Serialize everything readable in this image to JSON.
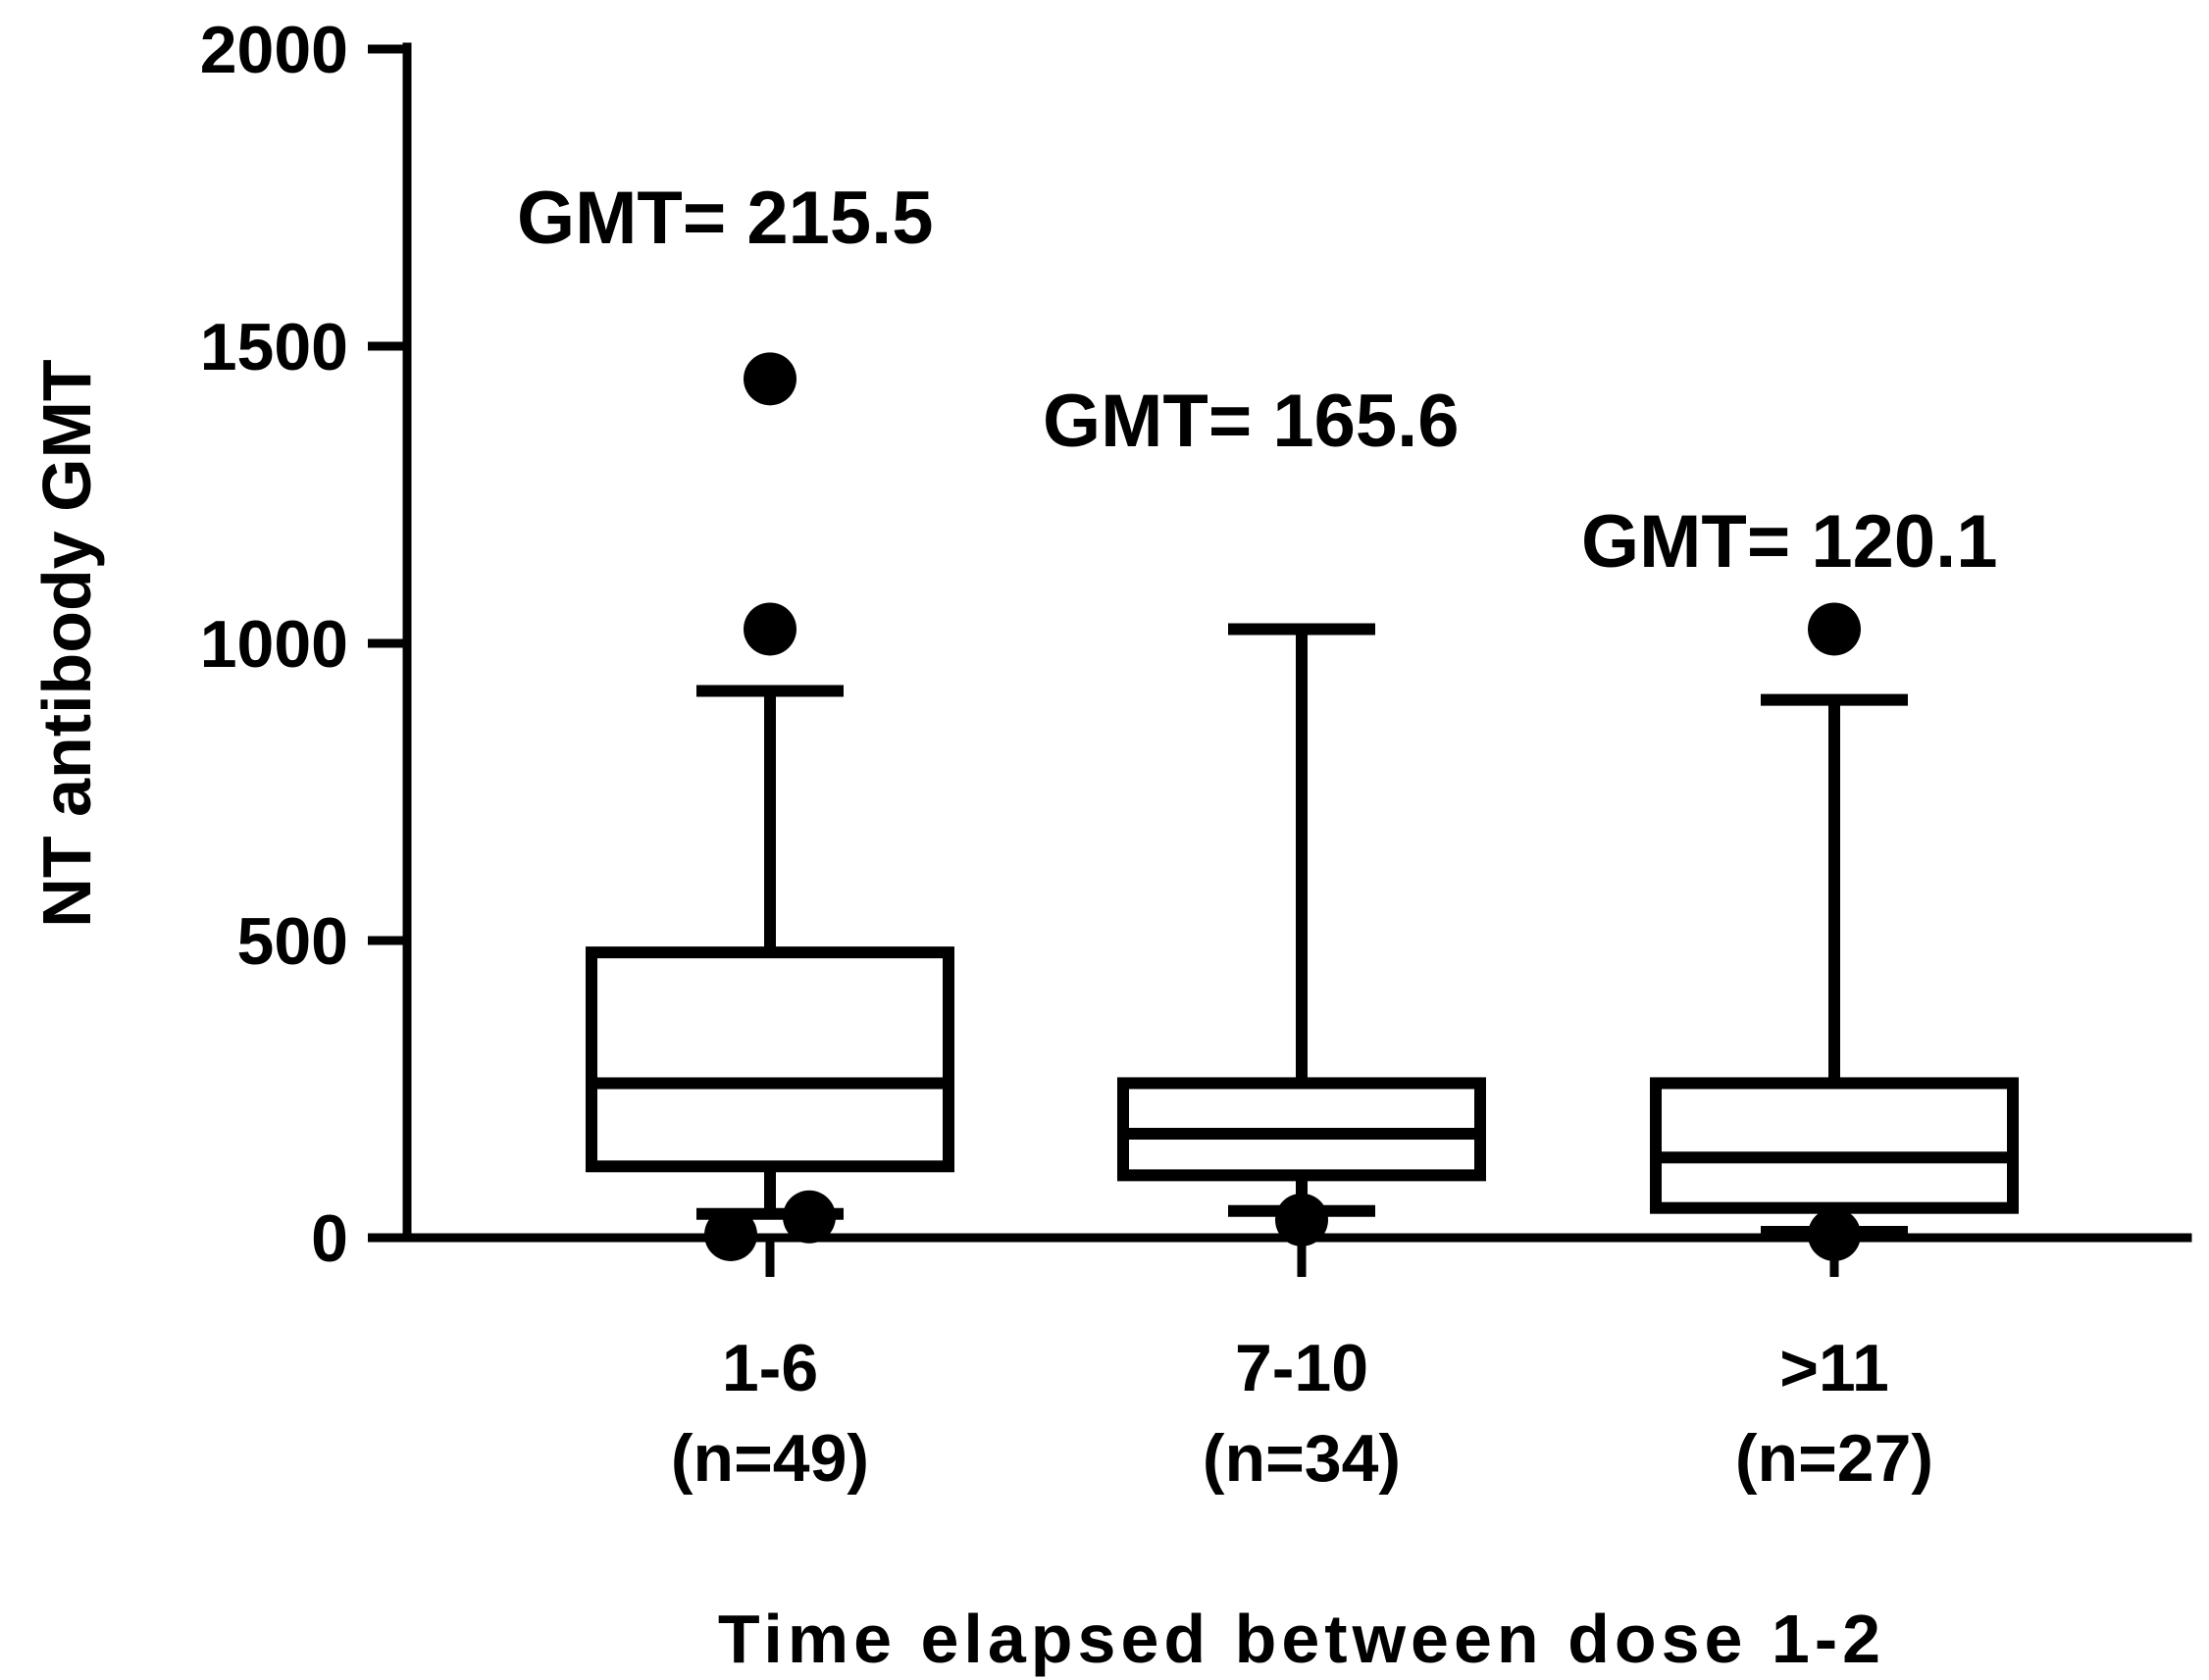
{
  "chart_data": {
    "type": "box",
    "title": "",
    "xlabel": "Time elapsed between dose 1-2",
    "ylabel": "NT antibody GMT",
    "ylim": [
      0,
      2000
    ],
    "yticks": [
      0,
      500,
      1000,
      1500,
      2000
    ],
    "grid": false,
    "groups": [
      {
        "label": "1-6",
        "n_label": "(n=49)",
        "annotation": "GMT= 215.5",
        "whisker_low": 40,
        "q1": 120,
        "median": 260,
        "q3": 480,
        "whisker_high": 920,
        "outliers": [
          1445,
          1024,
          35,
          5
        ]
      },
      {
        "label": "7-10",
        "n_label": "(n=34)",
        "annotation": "GMT= 165.6",
        "whisker_low": 45,
        "q1": 105,
        "median": 175,
        "q3": 260,
        "whisker_high": 1024,
        "outliers": [
          30
        ]
      },
      {
        "label": ">11",
        "n_label": "(n=27)",
        "annotation": "GMT= 120.1",
        "whisker_low": 10,
        "q1": 50,
        "median": 135,
        "q3": 260,
        "whisker_high": 905,
        "outliers": [
          1024,
          5
        ]
      }
    ]
  }
}
